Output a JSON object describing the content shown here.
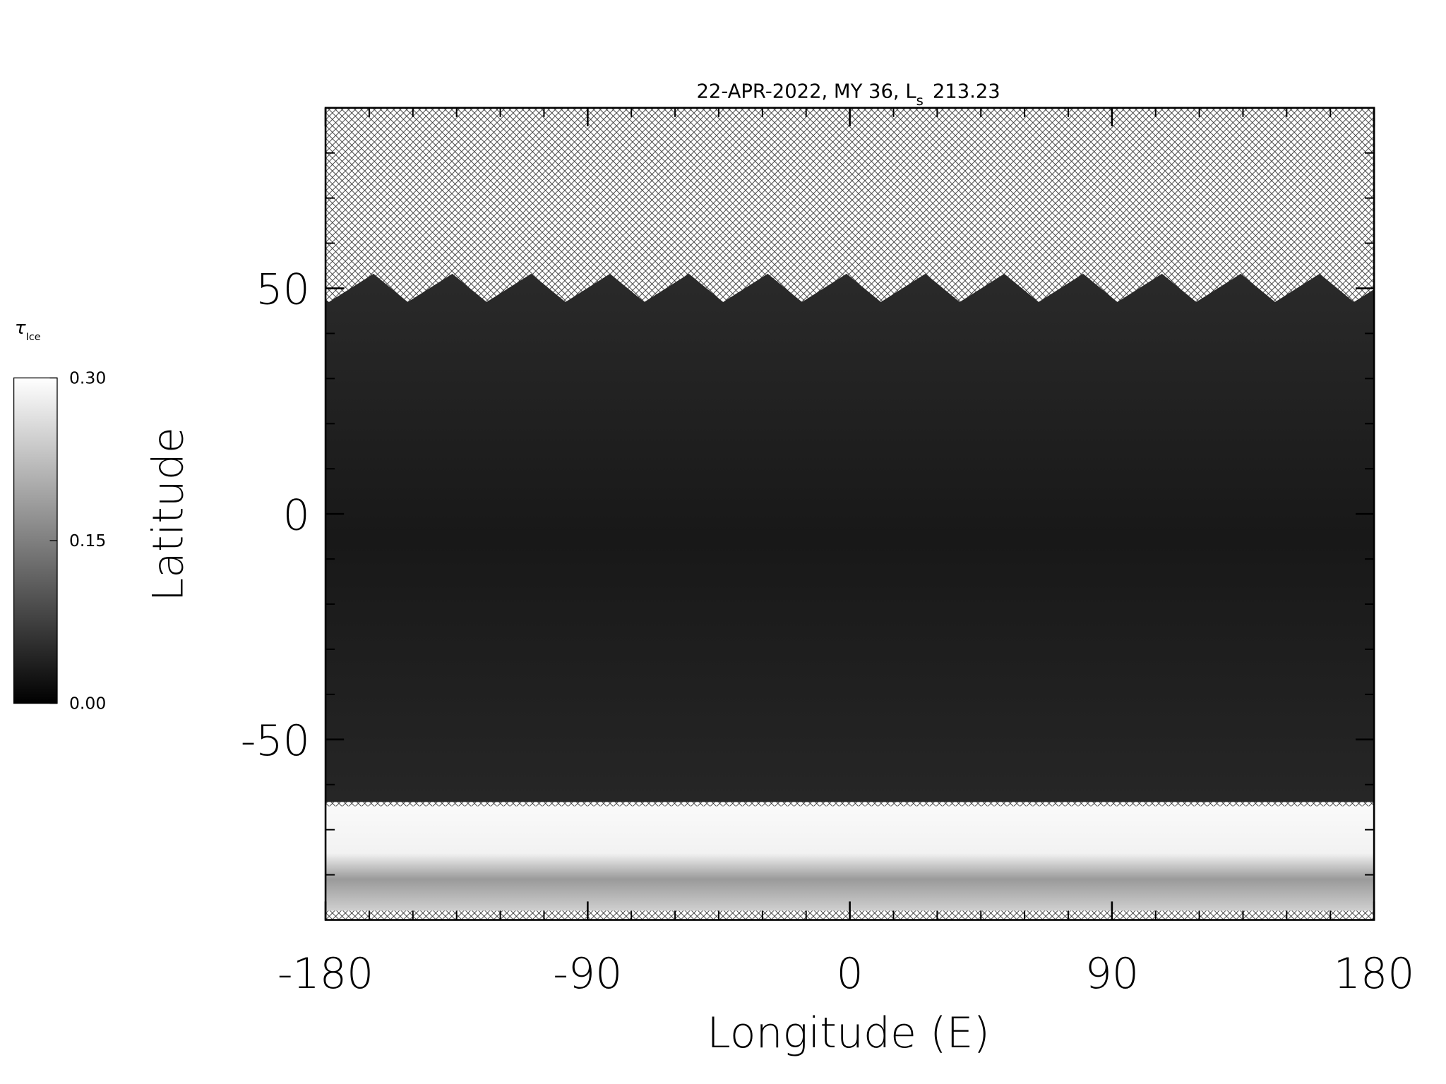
{
  "chart_data": {
    "type": "map",
    "title": "22-APR-2022, MY 36,  L",
    "title_subscript": "s",
    "title_suffix": "213.23",
    "xlabel": "Longitude (E)",
    "ylabel": "Latitude",
    "xlim": [
      -180,
      180
    ],
    "ylim": [
      -90,
      90
    ],
    "xticks": [
      -180,
      -90,
      0,
      90,
      180
    ],
    "yticks": [
      -50,
      0,
      50
    ],
    "colorbar": {
      "label": "τ",
      "label_subscript": "Ice",
      "lim": [
        0,
        0.3
      ],
      "ticks": [
        {
          "value": 0,
          "label": "0.00"
        },
        {
          "value": 0.15,
          "label": "0.15"
        },
        {
          "value": 0.3,
          "label": "0.30"
        }
      ],
      "colors": [
        "#000000",
        "#ffffff"
      ]
    }
  }
}
